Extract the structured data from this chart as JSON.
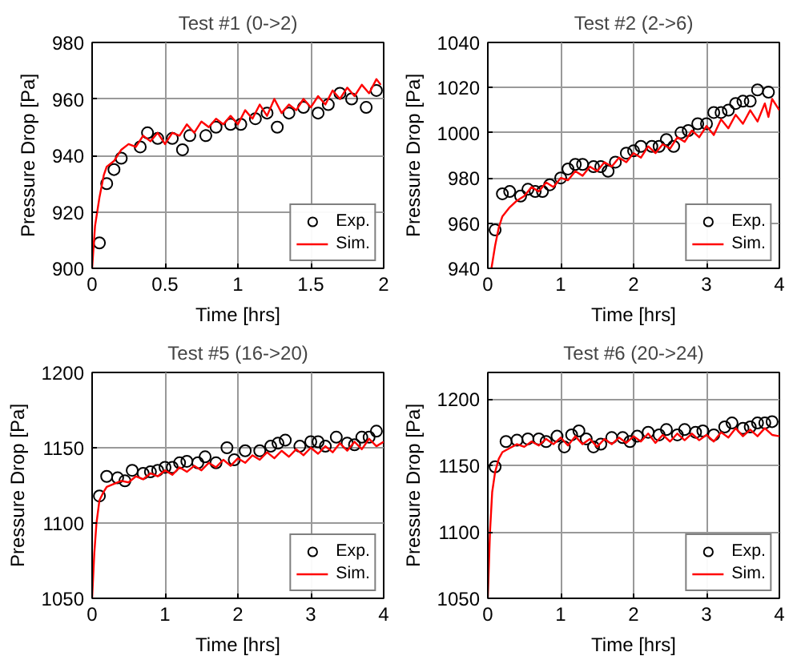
{
  "chart_data": [
    {
      "type": "scatter",
      "title": "Test #1 (0->2)",
      "xlabel": "Time [hrs]",
      "ylabel": "Pressure Drop [Pa]",
      "xlim": [
        0,
        2
      ],
      "ylim": [
        900,
        980
      ],
      "xticks": [
        0,
        0.5,
        1,
        1.5,
        2
      ],
      "yticks": [
        900,
        920,
        940,
        960,
        980
      ],
      "grid": true,
      "legend": "bottom right",
      "series": [
        {
          "name": "Exp.",
          "marker": "circle",
          "color": "#000000",
          "x": [
            0.05,
            0.1,
            0.15,
            0.2,
            0.33,
            0.38,
            0.45,
            0.55,
            0.62,
            0.67,
            0.78,
            0.85,
            0.95,
            1.02,
            1.12,
            1.2,
            1.27,
            1.35,
            1.45,
            1.55,
            1.62,
            1.7,
            1.78,
            1.88,
            1.95
          ],
          "values": [
            909,
            930,
            935,
            939,
            943,
            948,
            946,
            946,
            942,
            947,
            947,
            950,
            951,
            951,
            953,
            955,
            950,
            955,
            957,
            955,
            958,
            962,
            960,
            957,
            963
          ]
        },
        {
          "name": "Sim.",
          "type": "line",
          "color": "#ff0000",
          "x": [
            0,
            0.02,
            0.05,
            0.08,
            0.1,
            0.15,
            0.2,
            0.25,
            0.3,
            0.35,
            0.4,
            0.45,
            0.5,
            0.55,
            0.6,
            0.65,
            0.7,
            0.75,
            0.8,
            0.85,
            0.9,
            0.95,
            1.0,
            1.05,
            1.1,
            1.15,
            1.2,
            1.25,
            1.3,
            1.35,
            1.4,
            1.45,
            1.5,
            1.55,
            1.6,
            1.65,
            1.7,
            1.75,
            1.8,
            1.85,
            1.9,
            1.95,
            1.98
          ],
          "values": [
            900,
            915,
            925,
            933,
            936,
            938,
            942,
            944,
            943,
            947,
            945,
            948,
            944,
            948,
            947,
            951,
            948,
            952,
            950,
            953,
            951,
            954,
            951,
            956,
            953,
            958,
            954,
            960,
            955,
            958,
            956,
            960,
            957,
            961,
            958,
            963,
            960,
            964,
            961,
            965,
            962,
            967,
            965
          ]
        }
      ]
    },
    {
      "type": "scatter",
      "title": "Test #2 (2->6)",
      "xlabel": "Time [hrs]",
      "ylabel": "Pressure Drop [Pa]",
      "xlim": [
        0,
        4
      ],
      "ylim": [
        940,
        1040
      ],
      "xticks": [
        0,
        1,
        2,
        3,
        4
      ],
      "yticks": [
        940,
        960,
        980,
        1000,
        1020,
        1040
      ],
      "grid": true,
      "legend": "bottom right",
      "series": [
        {
          "name": "Exp.",
          "marker": "circle",
          "color": "#000000",
          "x": [
            0.1,
            0.2,
            0.3,
            0.45,
            0.55,
            0.65,
            0.75,
            0.85,
            1.0,
            1.1,
            1.2,
            1.3,
            1.45,
            1.55,
            1.65,
            1.75,
            1.9,
            2.0,
            2.1,
            2.25,
            2.35,
            2.45,
            2.55,
            2.65,
            2.75,
            2.88,
            3.0,
            3.1,
            3.2,
            3.3,
            3.4,
            3.5,
            3.6,
            3.7,
            3.85
          ],
          "values": [
            957,
            973,
            974,
            972,
            975,
            974,
            974,
            977,
            980,
            984,
            986,
            986,
            985,
            985,
            983,
            987,
            991,
            992,
            994,
            994,
            994,
            997,
            994,
            1000,
            1001,
            1004,
            1004,
            1009,
            1009,
            1010,
            1013,
            1014,
            1014,
            1019,
            1018
          ]
        },
        {
          "name": "Sim.",
          "type": "line",
          "color": "#ff0000",
          "x": [
            0.05,
            0.1,
            0.15,
            0.2,
            0.3,
            0.4,
            0.5,
            0.6,
            0.7,
            0.8,
            0.9,
            1.0,
            1.1,
            1.2,
            1.3,
            1.4,
            1.5,
            1.6,
            1.7,
            1.8,
            1.9,
            2.0,
            2.1,
            2.2,
            2.3,
            2.4,
            2.5,
            2.6,
            2.7,
            2.8,
            2.9,
            3.0,
            3.1,
            3.2,
            3.3,
            3.4,
            3.5,
            3.6,
            3.7,
            3.8,
            3.85,
            3.9,
            4.0
          ],
          "values": [
            940,
            950,
            958,
            963,
            967,
            970,
            972,
            976,
            974,
            978,
            976,
            980,
            979,
            983,
            981,
            985,
            983,
            987,
            985,
            989,
            987,
            991,
            989,
            994,
            991,
            995,
            993,
            998,
            996,
            1001,
            998,
            1003,
            999,
            1006,
            1002,
            1008,
            1004,
            1010,
            1005,
            1013,
            1007,
            1015,
            1010
          ]
        }
      ]
    },
    {
      "type": "scatter",
      "title": "Test #5 (16->20)",
      "xlabel": "Time [hrs]",
      "ylabel": "Pressure Drop [Pa]",
      "xlim": [
        0,
        4
      ],
      "ylim": [
        1050,
        1200
      ],
      "xticks": [
        0,
        1,
        2,
        3,
        4
      ],
      "yticks": [
        1050,
        1100,
        1150,
        1200
      ],
      "grid": true,
      "legend": "bottom right",
      "series": [
        {
          "name": "Exp.",
          "marker": "circle",
          "color": "#000000",
          "x": [
            0.1,
            0.2,
            0.35,
            0.45,
            0.55,
            0.7,
            0.8,
            0.9,
            1.0,
            1.1,
            1.2,
            1.3,
            1.45,
            1.55,
            1.7,
            1.85,
            1.95,
            2.1,
            2.3,
            2.45,
            2.55,
            2.65,
            2.85,
            3.0,
            3.1,
            3.2,
            3.35,
            3.5,
            3.6,
            3.7,
            3.8,
            3.9
          ],
          "values": [
            1118,
            1131,
            1130,
            1128,
            1135,
            1133,
            1134,
            1135,
            1137,
            1137,
            1140,
            1141,
            1140,
            1144,
            1140,
            1150,
            1142,
            1148,
            1148,
            1151,
            1153,
            1155,
            1151,
            1154,
            1154,
            1151,
            1157,
            1153,
            1152,
            1157,
            1157,
            1161
          ]
        },
        {
          "name": "Sim.",
          "type": "line",
          "color": "#ff0000",
          "x": [
            0,
            0.03,
            0.06,
            0.1,
            0.15,
            0.2,
            0.3,
            0.4,
            0.5,
            0.6,
            0.7,
            0.8,
            0.9,
            1.0,
            1.1,
            1.2,
            1.3,
            1.4,
            1.5,
            1.6,
            1.7,
            1.8,
            1.9,
            2.0,
            2.1,
            2.2,
            2.3,
            2.4,
            2.5,
            2.6,
            2.7,
            2.8,
            2.9,
            3.0,
            3.1,
            3.2,
            3.3,
            3.4,
            3.5,
            3.6,
            3.7,
            3.8,
            3.9,
            4.0
          ],
          "values": [
            1050,
            1080,
            1100,
            1115,
            1120,
            1124,
            1126,
            1128,
            1127,
            1131,
            1129,
            1133,
            1131,
            1135,
            1132,
            1137,
            1134,
            1138,
            1135,
            1140,
            1137,
            1142,
            1138,
            1143,
            1140,
            1145,
            1142,
            1147,
            1143,
            1148,
            1144,
            1149,
            1145,
            1150,
            1146,
            1151,
            1147,
            1153,
            1148,
            1154,
            1149,
            1156,
            1151,
            1154
          ]
        }
      ]
    },
    {
      "type": "scatter",
      "title": "Test #6 (20->24)",
      "xlabel": "Time [hrs]",
      "ylabel": "Pressure Drop [Pa]",
      "xlim": [
        0,
        4
      ],
      "ylim": [
        1050,
        1220
      ],
      "xticks": [
        0,
        1,
        2,
        3,
        4
      ],
      "yticks": [
        1050,
        1100,
        1150,
        1200
      ],
      "grid": true,
      "legend": "bottom right",
      "series": [
        {
          "name": "Exp.",
          "marker": "circle",
          "color": "#000000",
          "x": [
            0.1,
            0.25,
            0.4,
            0.55,
            0.7,
            0.8,
            0.95,
            1.05,
            1.15,
            1.25,
            1.35,
            1.45,
            1.55,
            1.7,
            1.85,
            1.95,
            2.05,
            2.2,
            2.35,
            2.45,
            2.6,
            2.7,
            2.85,
            2.95,
            3.1,
            3.25,
            3.35,
            3.5,
            3.6,
            3.7,
            3.8,
            3.9
          ],
          "values": [
            1149,
            1168,
            1169,
            1170,
            1170,
            1168,
            1172,
            1164,
            1173,
            1176,
            1170,
            1164,
            1166,
            1171,
            1171,
            1168,
            1172,
            1175,
            1173,
            1177,
            1173,
            1177,
            1175,
            1176,
            1173,
            1179,
            1182,
            1178,
            1179,
            1182,
            1182,
            1183
          ]
        },
        {
          "name": "Sim.",
          "type": "line",
          "color": "#ff0000",
          "x": [
            0,
            0.03,
            0.06,
            0.1,
            0.15,
            0.2,
            0.3,
            0.4,
            0.5,
            0.6,
            0.7,
            0.8,
            0.9,
            1.0,
            1.1,
            1.2,
            1.3,
            1.4,
            1.5,
            1.6,
            1.7,
            1.8,
            1.9,
            2.0,
            2.1,
            2.2,
            2.3,
            2.4,
            2.5,
            2.6,
            2.7,
            2.8,
            2.9,
            3.0,
            3.1,
            3.2,
            3.3,
            3.4,
            3.5,
            3.6,
            3.7,
            3.8,
            3.9,
            4.0
          ],
          "values": [
            1050,
            1100,
            1130,
            1145,
            1155,
            1160,
            1163,
            1166,
            1164,
            1168,
            1165,
            1170,
            1166,
            1171,
            1165,
            1172,
            1166,
            1170,
            1164,
            1170,
            1166,
            1171,
            1167,
            1172,
            1168,
            1174,
            1167,
            1173,
            1168,
            1174,
            1169,
            1174,
            1169,
            1173,
            1168,
            1175,
            1171,
            1178,
            1172,
            1177,
            1172,
            1178,
            1173,
            1172
          ]
        }
      ]
    }
  ]
}
